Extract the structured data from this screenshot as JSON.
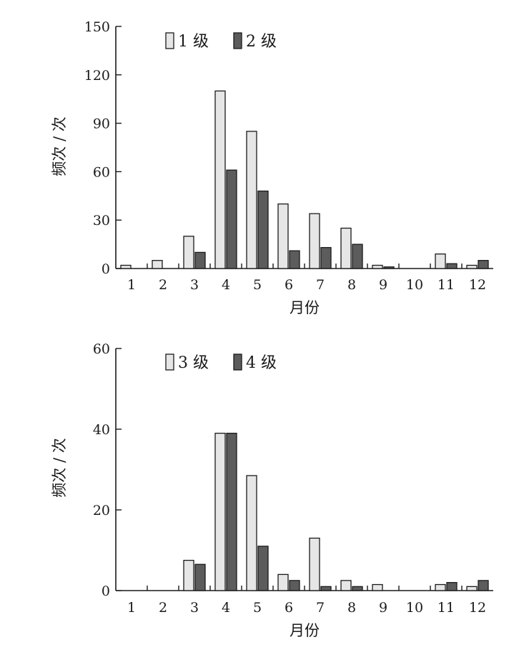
{
  "chart_data": [
    {
      "type": "bar",
      "categories": [
        "1",
        "2",
        "3",
        "4",
        "5",
        "6",
        "7",
        "8",
        "9",
        "10",
        "11",
        "12"
      ],
      "series": [
        {
          "name": "1 级",
          "color": "#e6e6e6",
          "values": [
            2,
            5,
            20,
            110,
            85,
            40,
            34,
            25,
            2,
            0,
            9,
            2
          ]
        },
        {
          "name": "2 级",
          "color": "#5c5c5c",
          "values": [
            0,
            0,
            10,
            61,
            48,
            11,
            13,
            15,
            1,
            0,
            3,
            5
          ]
        }
      ],
      "yticks": [
        0,
        30,
        60,
        90,
        120,
        150
      ],
      "ylim": [
        0,
        150
      ],
      "xlabel": "月份",
      "ylabel": "频次 / 次"
    },
    {
      "type": "bar",
      "categories": [
        "1",
        "2",
        "3",
        "4",
        "5",
        "6",
        "7",
        "8",
        "9",
        "10",
        "11",
        "12"
      ],
      "series": [
        {
          "name": "3 级",
          "color": "#e6e6e6",
          "values": [
            0,
            0,
            7.5,
            39,
            28.5,
            4,
            13,
            2.5,
            1.5,
            0,
            1.5,
            1
          ]
        },
        {
          "name": "4 级",
          "color": "#5c5c5c",
          "values": [
            0,
            0,
            6.5,
            39,
            11,
            2.5,
            1,
            1,
            0,
            0,
            2,
            2.5
          ]
        }
      ],
      "yticks": [
        0,
        20,
        40,
        60
      ],
      "ylim": [
        0,
        60
      ],
      "xlabel": "月份",
      "ylabel": "频次 / 次"
    }
  ]
}
